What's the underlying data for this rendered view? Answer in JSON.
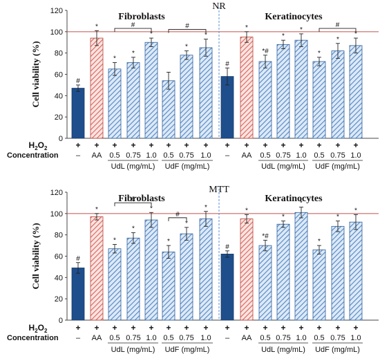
{
  "chart_data": [
    {
      "type": "bar",
      "panel_label": "NR",
      "ylabel": "Cell viability (%)",
      "ylim": [
        0,
        120
      ],
      "yticks": [
        0,
        20,
        40,
        60,
        80,
        100,
        120
      ],
      "reference_line": 100,
      "groups": [
        {
          "title": "Fibroblasts",
          "bars": [
            {
              "h2o2": "+",
              "conc": "–",
              "value": 47,
              "err": 3,
              "style": "navy",
              "mark": "#"
            },
            {
              "h2o2": "+",
              "conc": "AA",
              "value": 94,
              "err": 7,
              "style": "red",
              "mark": "*"
            },
            {
              "h2o2": "+",
              "conc": "0.5",
              "value": 65,
              "err": 6,
              "style": "blue",
              "mark": "*"
            },
            {
              "h2o2": "+",
              "conc": "0.75",
              "value": 71,
              "err": 5,
              "style": "blue",
              "mark": "*"
            },
            {
              "h2o2": "+",
              "conc": "1.0",
              "value": 90,
              "err": 4,
              "style": "blue",
              "mark": "*"
            },
            {
              "h2o2": "+",
              "conc": "0.5",
              "value": 54,
              "err": 8,
              "style": "blue",
              "mark": ""
            },
            {
              "h2o2": "+",
              "conc": "0.75",
              "value": 78,
              "err": 4,
              "style": "blue",
              "mark": "*"
            },
            {
              "h2o2": "+",
              "conc": "1.0",
              "value": 85,
              "err": 8,
              "style": "blue",
              "mark": "*"
            }
          ],
          "brackets": [
            {
              "from": 2,
              "to": 4,
              "label": "#"
            },
            {
              "from": 5,
              "to": 7,
              "label": "#"
            }
          ]
        },
        {
          "title": "Keratinocytes",
          "bars": [
            {
              "h2o2": "+",
              "conc": "–",
              "value": 58,
              "err": 8,
              "style": "navy",
              "mark": "#"
            },
            {
              "h2o2": "+",
              "conc": "AA",
              "value": 95,
              "err": 5,
              "style": "red",
              "mark": "*"
            },
            {
              "h2o2": "+",
              "conc": "0.5",
              "value": 72,
              "err": 6,
              "style": "blue",
              "mark": "*#"
            },
            {
              "h2o2": "+",
              "conc": "0.75",
              "value": 88,
              "err": 4,
              "style": "blue",
              "mark": "*"
            },
            {
              "h2o2": "+",
              "conc": "1.0",
              "value": 92,
              "err": 6,
              "style": "blue",
              "mark": "*"
            },
            {
              "h2o2": "+",
              "conc": "0.5",
              "value": 72,
              "err": 4,
              "style": "blue",
              "mark": "*"
            },
            {
              "h2o2": "+",
              "conc": "0.75",
              "value": 82,
              "err": 7,
              "style": "blue",
              "mark": "*"
            },
            {
              "h2o2": "+",
              "conc": "1.0",
              "value": 87,
              "err": 7,
              "style": "blue",
              "mark": "*"
            }
          ],
          "brackets": [
            {
              "from": 5,
              "to": 7,
              "label": "#"
            }
          ]
        }
      ]
    },
    {
      "type": "bar",
      "panel_label": "MTT",
      "ylabel": "Cell viability (%)",
      "ylim": [
        0,
        120
      ],
      "yticks": [
        0,
        20,
        40,
        60,
        80,
        100,
        120
      ],
      "reference_line": 100,
      "groups": [
        {
          "title": "Fibroblasts",
          "bars": [
            {
              "h2o2": "+",
              "conc": "–",
              "value": 49,
              "err": 5,
              "style": "navy",
              "mark": "#"
            },
            {
              "h2o2": "+",
              "conc": "AA",
              "value": 97,
              "err": 3,
              "style": "red",
              "mark": "*"
            },
            {
              "h2o2": "+",
              "conc": "0.5",
              "value": 67,
              "err": 4,
              "style": "blue",
              "mark": "*"
            },
            {
              "h2o2": "+",
              "conc": "0.75",
              "value": 77,
              "err": 5,
              "style": "blue",
              "mark": "*"
            },
            {
              "h2o2": "+",
              "conc": "1.0",
              "value": 94,
              "err": 7,
              "style": "blue",
              "mark": "*"
            },
            {
              "h2o2": "+",
              "conc": "0.5",
              "value": 64,
              "err": 6,
              "style": "blue",
              "mark": "*"
            },
            {
              "h2o2": "+",
              "conc": "0.75",
              "value": 81,
              "err": 6,
              "style": "blue",
              "mark": "*"
            },
            {
              "h2o2": "+",
              "conc": "1.0",
              "value": 95,
              "err": 7,
              "style": "blue",
              "mark": "*"
            }
          ],
          "brackets": [
            {
              "from": 2,
              "to": 4,
              "label": "#"
            },
            {
              "from": 5,
              "to": 6,
              "label": "#"
            }
          ]
        },
        {
          "title": "Keratinocytes",
          "bars": [
            {
              "h2o2": "+",
              "conc": "–",
              "value": 62,
              "err": 3,
              "style": "navy",
              "mark": "#"
            },
            {
              "h2o2": "+",
              "conc": "AA",
              "value": 95,
              "err": 4,
              "style": "red",
              "mark": "*"
            },
            {
              "h2o2": "+",
              "conc": "0.5",
              "value": 70,
              "err": 5,
              "style": "blue",
              "mark": "*#"
            },
            {
              "h2o2": "+",
              "conc": "0.75",
              "value": 90,
              "err": 3,
              "style": "blue",
              "mark": "*"
            },
            {
              "h2o2": "+",
              "conc": "1.0",
              "value": 101,
              "err": 5,
              "style": "blue",
              "mark": "*"
            },
            {
              "h2o2": "+",
              "conc": "0.5",
              "value": 66,
              "err": 4,
              "style": "blue",
              "mark": "*"
            },
            {
              "h2o2": "+",
              "conc": "0.75",
              "value": 88,
              "err": 5,
              "style": "blue",
              "mark": "*"
            },
            {
              "h2o2": "+",
              "conc": "1.0",
              "value": 92,
              "err": 7,
              "style": "blue",
              "mark": "*"
            }
          ],
          "brackets": []
        }
      ]
    }
  ],
  "row_labels": {
    "h2o2_main": "H",
    "h2o2_sub": "2",
    "h2o2_tail": "O",
    "h2o2_sub2": "2",
    "concentration": "Concentration"
  },
  "group_axis_labels": {
    "udl": "UdL (mg/mL)",
    "udf": "UdF (mg/mL)"
  },
  "colors": {
    "navy": "#1f4e8c",
    "navy_edge": "#183c6b",
    "red_hatch": "#d9635a",
    "red_fill": "#fbe4e1",
    "red_edge": "#b8433a",
    "blue_hatch": "#4f86c6",
    "blue_fill": "#dde9f6",
    "blue_edge": "#2f5f9c",
    "reference_line": "#c0504d",
    "divider": "#5b8fd0"
  }
}
